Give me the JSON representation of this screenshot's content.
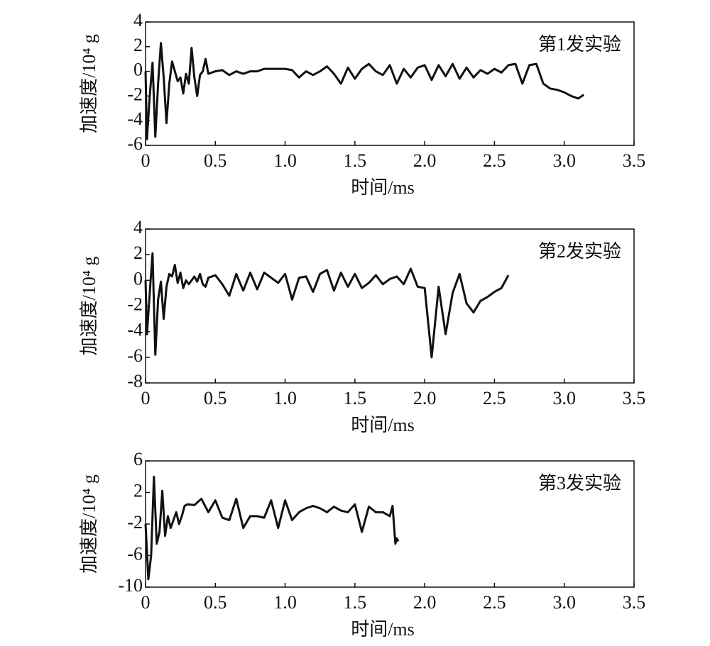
{
  "chart_data": [
    {
      "type": "line",
      "annotation": "第1发实验",
      "xlabel": "时间/ms",
      "ylabel": "加速度/10⁴ g",
      "color": "#111111",
      "xlim": [
        0,
        3.5
      ],
      "xticks": [
        0,
        0.5,
        {
          "value": 1,
          "label": "1.0"
        },
        1.5,
        {
          "value": 2,
          "label": "2.0"
        },
        2.5,
        {
          "value": 3,
          "label": "3.0"
        },
        3.5
      ],
      "ylim": [
        -6,
        4
      ],
      "yticks": [
        -6,
        -4,
        -2,
        0,
        2,
        4
      ],
      "x": [
        0,
        0.01,
        0.03,
        0.05,
        0.07,
        0.09,
        0.11,
        0.13,
        0.15,
        0.17,
        0.19,
        0.21,
        0.23,
        0.25,
        0.27,
        0.29,
        0.31,
        0.33,
        0.35,
        0.37,
        0.39,
        0.41,
        0.43,
        0.45,
        0.5,
        0.55,
        0.6,
        0.65,
        0.7,
        0.75,
        0.8,
        0.85,
        0.9,
        0.95,
        1.0,
        1.05,
        1.1,
        1.15,
        1.2,
        1.25,
        1.3,
        1.35,
        1.4,
        1.45,
        1.5,
        1.55,
        1.6,
        1.65,
        1.7,
        1.75,
        1.8,
        1.85,
        1.9,
        1.95,
        2.0,
        2.05,
        2.1,
        2.15,
        2.2,
        2.25,
        2.3,
        2.35,
        2.4,
        2.45,
        2.5,
        2.55,
        2.6,
        2.65,
        2.7,
        2.75,
        2.8,
        2.85,
        2.9,
        2.95,
        3.0,
        3.05,
        3.1,
        3.14
      ],
      "values": [
        0,
        -5.5,
        -2,
        0.7,
        -5.3,
        -1,
        2.3,
        -0.5,
        -4.2,
        -1,
        0.8,
        0,
        -0.8,
        -0.5,
        -1.8,
        -0.2,
        -1,
        1.9,
        -0.5,
        -2,
        -0.3,
        0,
        1,
        -0.2,
        0,
        0.1,
        -0.3,
        0,
        -0.2,
        0,
        0,
        0.2,
        0.2,
        0.2,
        0.2,
        0.1,
        -0.5,
        0,
        -0.3,
        0,
        0.4,
        -0.2,
        -1,
        0.3,
        -0.6,
        0.2,
        0.6,
        0,
        -0.3,
        0.5,
        -1,
        0.2,
        -0.5,
        0.3,
        0.5,
        -0.7,
        0.5,
        -0.4,
        0.6,
        -0.6,
        0.3,
        -0.5,
        0.1,
        -0.2,
        0.2,
        -0.1,
        0.5,
        0.6,
        -1,
        0.5,
        0.6,
        -1,
        -1.4,
        -1.5,
        -1.7,
        -2,
        -2.2,
        -1.9
      ]
    },
    {
      "type": "line",
      "annotation": "第2发实验",
      "xlabel": "时间/ms",
      "ylabel": "加速度/10⁴ g",
      "color": "#111111",
      "xlim": [
        0,
        3.5
      ],
      "xticks": [
        0,
        0.5,
        {
          "value": 1,
          "label": "1.0"
        },
        1.5,
        {
          "value": 2,
          "label": "2.0"
        },
        2.5,
        {
          "value": 3,
          "label": "3.0"
        },
        3.5
      ],
      "ylim": [
        -8,
        4
      ],
      "yticks": [
        -8,
        -6,
        -4,
        -2,
        0,
        2,
        4
      ],
      "x": [
        0,
        0.01,
        0.03,
        0.05,
        0.07,
        0.09,
        0.11,
        0.13,
        0.15,
        0.17,
        0.19,
        0.21,
        0.23,
        0.25,
        0.27,
        0.29,
        0.31,
        0.33,
        0.35,
        0.37,
        0.39,
        0.41,
        0.43,
        0.45,
        0.5,
        0.55,
        0.6,
        0.65,
        0.7,
        0.75,
        0.8,
        0.85,
        0.9,
        0.95,
        1.0,
        1.05,
        1.1,
        1.15,
        1.2,
        1.25,
        1.3,
        1.35,
        1.4,
        1.45,
        1.5,
        1.55,
        1.6,
        1.65,
        1.7,
        1.75,
        1.8,
        1.85,
        1.9,
        1.95,
        2.0,
        2.05,
        2.1,
        2.15,
        2.2,
        2.25,
        2.3,
        2.35,
        2.4,
        2.45,
        2.5,
        2.55,
        2.6
      ],
      "values": [
        0,
        -4.2,
        -1,
        2.1,
        -5.8,
        -1.5,
        -0.1,
        -3,
        -0.5,
        0.5,
        0.3,
        1.2,
        -0.2,
        0.6,
        -0.6,
        0,
        -0.3,
        0,
        0.3,
        -0.1,
        0.5,
        -0.3,
        -0.5,
        0.2,
        0.4,
        -0.3,
        -1.2,
        0.5,
        -0.8,
        0.6,
        -0.7,
        0.6,
        0.2,
        -0.2,
        0.5,
        -1.5,
        0.2,
        0.3,
        -0.9,
        0.5,
        0.8,
        -0.8,
        0.6,
        -0.5,
        0.5,
        -0.6,
        -0.2,
        0.4,
        -0.3,
        0.1,
        0.3,
        -0.3,
        0.9,
        -0.5,
        -0.6,
        -6,
        -0.5,
        -4.2,
        -1,
        0.5,
        -1.8,
        -2.5,
        -1.6,
        -1.3,
        -0.9,
        -0.6,
        0.4
      ]
    },
    {
      "type": "line",
      "annotation": "第3发实验",
      "xlabel": "时间/ms",
      "ylabel": "加速度/10⁴ g",
      "color": "#111111",
      "xlim": [
        0,
        3.5
      ],
      "xticks": [
        0,
        0.5,
        {
          "value": 1,
          "label": "1.0"
        },
        1.5,
        {
          "value": 2,
          "label": "2.0"
        },
        2.5,
        {
          "value": 3,
          "label": "3.0"
        },
        3.5
      ],
      "ylim": [
        -10,
        6
      ],
      "yticks": [
        -10,
        -6,
        -2,
        2,
        6
      ],
      "x": [
        0,
        0.02,
        0.04,
        0.06,
        0.08,
        0.1,
        0.12,
        0.14,
        0.16,
        0.18,
        0.2,
        0.22,
        0.24,
        0.26,
        0.28,
        0.3,
        0.35,
        0.4,
        0.45,
        0.5,
        0.55,
        0.6,
        0.65,
        0.7,
        0.75,
        0.8,
        0.85,
        0.9,
        0.95,
        1.0,
        1.05,
        1.1,
        1.15,
        1.2,
        1.25,
        1.3,
        1.35,
        1.4,
        1.45,
        1.5,
        1.55,
        1.6,
        1.65,
        1.7,
        1.75,
        1.77,
        1.79,
        1.8,
        1.81
      ],
      "values": [
        -2,
        -9,
        -6,
        4,
        -4.5,
        -3,
        2.2,
        -3.5,
        -1,
        -2.5,
        -1.5,
        -0.5,
        -2,
        -1,
        0.3,
        0.5,
        0.4,
        1.2,
        -0.5,
        1,
        -1.2,
        -1.5,
        1.2,
        -2.5,
        -1,
        -1,
        -1.2,
        1,
        -2.5,
        1,
        -1.5,
        -0.5,
        0,
        0.3,
        0,
        -0.5,
        0.2,
        -0.3,
        -0.5,
        0.5,
        -3,
        0.2,
        -0.5,
        -0.5,
        -1,
        0.3,
        -4.5,
        -3.8,
        -4.2
      ]
    }
  ]
}
